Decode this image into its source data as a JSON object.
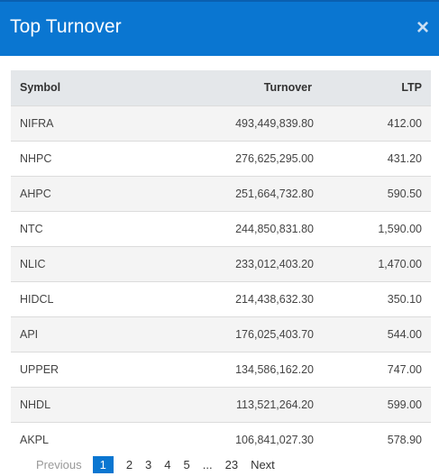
{
  "modal": {
    "title": "Top Turnover",
    "close_symbol": "×"
  },
  "table": {
    "headers": {
      "symbol": "Symbol",
      "turnover": "Turnover",
      "ltp": "LTP"
    },
    "rows": [
      {
        "symbol": "NIFRA",
        "turnover": "493,449,839.80",
        "ltp": "412.00"
      },
      {
        "symbol": "NHPC",
        "turnover": "276,625,295.00",
        "ltp": "431.20"
      },
      {
        "symbol": "AHPC",
        "turnover": "251,664,732.80",
        "ltp": "590.50"
      },
      {
        "symbol": "NTC",
        "turnover": "244,850,831.80",
        "ltp": "1,590.00"
      },
      {
        "symbol": "NLIC",
        "turnover": "233,012,403.20",
        "ltp": "1,470.00"
      },
      {
        "symbol": "HIDCL",
        "turnover": "214,438,632.30",
        "ltp": "350.10"
      },
      {
        "symbol": "API",
        "turnover": "176,025,403.70",
        "ltp": "544.00"
      },
      {
        "symbol": "UPPER",
        "turnover": "134,586,162.20",
        "ltp": "747.00"
      },
      {
        "symbol": "NHDL",
        "turnover": "113,521,264.20",
        "ltp": "599.00"
      },
      {
        "symbol": "AKPL",
        "turnover": "106,841,027.30",
        "ltp": "578.90"
      }
    ]
  },
  "pagination": {
    "previous": "Previous",
    "pages": [
      "1",
      "2",
      "3",
      "4",
      "5",
      "...",
      "23"
    ],
    "active_page": "1",
    "next": "Next"
  },
  "colors": {
    "header_bg": "#0a76d1",
    "accent": "#0a76d1"
  },
  "icons": {
    "close": "close-icon"
  }
}
